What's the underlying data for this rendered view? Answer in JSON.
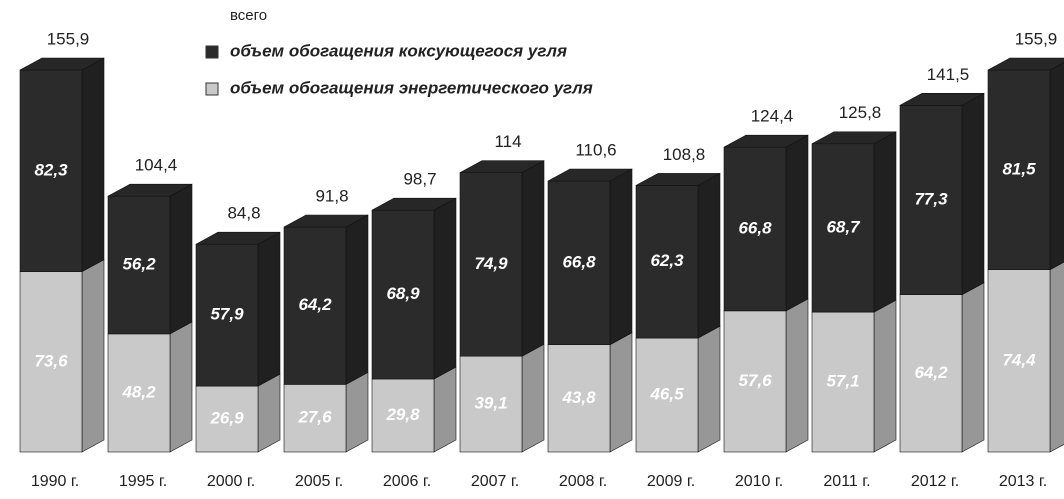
{
  "chart_data": {
    "type": "stacked-bar-3d",
    "categories": [
      "1990 г.",
      "1995 г.",
      "2000 г.",
      "2005 г.",
      "2006 г.",
      "2007 г.",
      "2008 г.",
      "2009 г.",
      "2010 г.",
      "2011 г.",
      "2012 г.",
      "2013 г."
    ],
    "series": [
      {
        "name": "объем обогащения коксующегося угля",
        "color": "#2b2b2b",
        "values": [
          82.3,
          56.2,
          57.9,
          64.2,
          68.9,
          74.9,
          66.8,
          62.3,
          66.8,
          68.7,
          77.3,
          81.5
        ],
        "value_labels": [
          "82,3",
          "56,2",
          "57,9",
          "64,2",
          "68,9",
          "74,9",
          "66,8",
          "62,3",
          "66,8",
          "68,7",
          "77,3",
          "81,5"
        ]
      },
      {
        "name": "объем обогащения энергетического угля",
        "color": "#c9c9c9",
        "values": [
          73.6,
          48.2,
          26.9,
          27.6,
          29.8,
          39.1,
          43.8,
          46.5,
          57.6,
          57.1,
          64.2,
          74.4
        ],
        "value_labels": [
          "73,6",
          "48,2",
          "26,9",
          "27,6",
          "29,8",
          "39,1",
          "43,8",
          "46,5",
          "57,6",
          "57,1",
          "64,2",
          "74,4"
        ]
      }
    ],
    "totals": {
      "name": "всего",
      "values": [
        155.9,
        104.4,
        84.8,
        91.8,
        98.7,
        114,
        110.6,
        108.8,
        124.4,
        125.8,
        141.5,
        155.9
      ],
      "value_labels": [
        "155,9",
        "104,4",
        "84,8",
        "91,8",
        "98,7",
        "114",
        "110,6",
        "108,8",
        "124,4",
        "125,8",
        "141,5",
        "155,9"
      ]
    }
  }
}
